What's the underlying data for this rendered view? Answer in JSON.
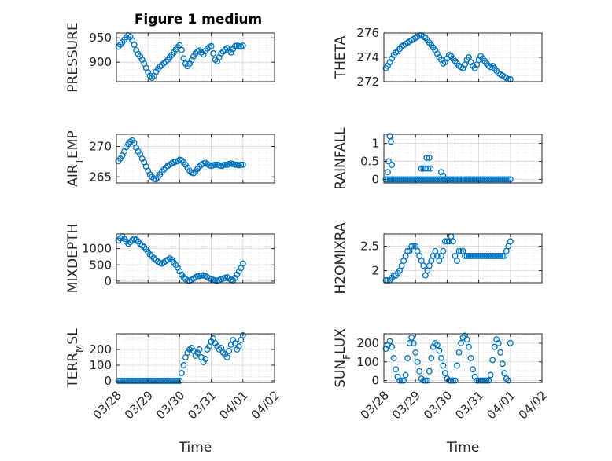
{
  "figure": {
    "title": "Figure 1 medium",
    "colors": {
      "marker": "#0072BD",
      "axis": "#262626",
      "grid": "#d6d6d6",
      "background": "#ffffff"
    }
  },
  "chart_data": [
    {
      "type": "scatter",
      "marker": "circle-open",
      "ylabel": "PRESSURE",
      "xlabel": "",
      "title": "Figure 1 medium",
      "ylim": [
        860,
        960
      ],
      "yticks": [
        "900",
        "950"
      ],
      "yticks_values": [
        900,
        950
      ],
      "xlim": [
        0,
        4
      ],
      "xticks": [],
      "grid": true,
      "x": [
        0.05,
        0.1,
        0.15,
        0.2,
        0.25,
        0.3,
        0.35,
        0.4,
        0.45,
        0.5,
        0.55,
        0.6,
        0.65,
        0.7,
        0.75,
        0.8,
        0.85,
        0.9,
        0.95,
        1.0,
        1.05,
        1.1,
        1.15,
        1.2,
        1.25,
        1.3,
        1.35,
        1.4,
        1.45,
        1.5,
        1.55,
        1.6,
        1.65,
        1.7,
        1.75,
        1.8,
        1.85,
        1.9,
        1.95,
        2.0,
        2.05,
        2.1,
        2.15,
        2.2,
        2.25,
        2.3,
        2.35,
        2.4,
        2.45,
        2.5,
        2.55,
        2.6,
        2.65,
        2.7,
        2.75,
        2.8,
        2.85,
        2.9,
        2.95,
        3.0,
        3.05,
        3.1,
        3.15,
        3.2
      ],
      "y": [
        932,
        936,
        941,
        946,
        951,
        955,
        952,
        945,
        936,
        925,
        917,
        912,
        905,
        897,
        888,
        879,
        872,
        868,
        872,
        880,
        886,
        891,
        894,
        898,
        901,
        905,
        910,
        915,
        920,
        926,
        931,
        935,
        925,
        908,
        897,
        892,
        897,
        904,
        912,
        918,
        922,
        924,
        920,
        916,
        923,
        928,
        931,
        933,
        918,
        905,
        902,
        910,
        918,
        922,
        926,
        929,
        924,
        920,
        927,
        933,
        934,
        933,
        932,
        934
      ]
    },
    {
      "type": "scatter",
      "marker": "circle-open",
      "ylabel": "THETA",
      "xlabel": "",
      "ylim": [
        272,
        276
      ],
      "yticks": [
        "272",
        "274",
        "276"
      ],
      "yticks_values": [
        272,
        274,
        276
      ],
      "xlim": [
        0,
        4
      ],
      "xticks": [],
      "grid": true,
      "x": [
        0.05,
        0.1,
        0.15,
        0.2,
        0.25,
        0.3,
        0.35,
        0.4,
        0.45,
        0.5,
        0.55,
        0.6,
        0.65,
        0.7,
        0.75,
        0.8,
        0.85,
        0.9,
        0.95,
        1.0,
        1.05,
        1.1,
        1.15,
        1.2,
        1.25,
        1.3,
        1.35,
        1.4,
        1.45,
        1.5,
        1.55,
        1.6,
        1.65,
        1.7,
        1.75,
        1.8,
        1.85,
        1.9,
        1.95,
        2.0,
        2.05,
        2.1,
        2.15,
        2.2,
        2.25,
        2.3,
        2.35,
        2.4,
        2.45,
        2.5,
        2.55,
        2.6,
        2.65,
        2.7,
        2.75,
        2.8,
        2.85,
        2.9,
        2.95,
        3.0,
        3.05,
        3.1,
        3.15,
        3.2
      ],
      "y": [
        273.1,
        273.3,
        273.6,
        273.9,
        274.2,
        274.4,
        274.5,
        274.7,
        274.9,
        275.0,
        275.1,
        275.2,
        275.3,
        275.4,
        275.5,
        275.6,
        275.7,
        275.8,
        275.8,
        275.7,
        275.6,
        275.4,
        275.2,
        275.0,
        274.8,
        274.6,
        274.3,
        274.0,
        273.8,
        273.5,
        273.6,
        273.9,
        274.2,
        274.1,
        273.9,
        273.7,
        273.5,
        273.3,
        273.2,
        273.1,
        273.4,
        273.8,
        274.0,
        273.6,
        273.3,
        273.1,
        273.4,
        273.8,
        274.1,
        273.9,
        273.7,
        273.5,
        273.3,
        273.2,
        273.3,
        273.1,
        272.9,
        272.7,
        272.6,
        272.5,
        272.4,
        272.3,
        272.2,
        272.2
      ]
    },
    {
      "type": "scatter",
      "marker": "circle-open",
      "ylabel": "AIR_TEMP",
      "xlabel": "",
      "ylim": [
        264,
        272
      ],
      "yticks": [
        "265",
        "270"
      ],
      "yticks_values": [
        265,
        270
      ],
      "xlim": [
        0,
        4
      ],
      "xticks": [],
      "grid": true,
      "x": [
        0.05,
        0.1,
        0.15,
        0.2,
        0.25,
        0.3,
        0.35,
        0.4,
        0.45,
        0.5,
        0.55,
        0.6,
        0.65,
        0.7,
        0.75,
        0.8,
        0.85,
        0.9,
        0.95,
        1.0,
        1.05,
        1.1,
        1.15,
        1.2,
        1.25,
        1.3,
        1.35,
        1.4,
        1.45,
        1.5,
        1.55,
        1.6,
        1.65,
        1.7,
        1.75,
        1.8,
        1.85,
        1.9,
        1.95,
        2.0,
        2.05,
        2.1,
        2.15,
        2.2,
        2.25,
        2.3,
        2.35,
        2.4,
        2.45,
        2.5,
        2.55,
        2.6,
        2.65,
        2.7,
        2.75,
        2.8,
        2.85,
        2.9,
        2.95,
        3.0,
        3.05,
        3.1,
        3.15,
        3.2
      ],
      "y": [
        267.6,
        268.0,
        268.5,
        269.2,
        269.9,
        270.4,
        270.8,
        271.0,
        270.6,
        269.8,
        269.2,
        268.7,
        268.0,
        267.4,
        266.7,
        266.0,
        265.4,
        265.0,
        264.7,
        264.6,
        264.9,
        265.4,
        265.8,
        266.2,
        266.5,
        266.8,
        267.0,
        267.2,
        267.4,
        267.5,
        267.6,
        267.8,
        267.7,
        267.4,
        267.0,
        266.5,
        266.0,
        265.7,
        265.6,
        265.9,
        266.3,
        266.7,
        267.0,
        267.2,
        267.3,
        267.1,
        266.9,
        266.8,
        266.9,
        267.0,
        267.0,
        266.9,
        266.8,
        266.9,
        267.0,
        267.0,
        267.1,
        267.2,
        267.1,
        267.0,
        267.0,
        266.9,
        267.0,
        267.0
      ]
    },
    {
      "type": "scatter",
      "marker": "circle-open",
      "ylabel": "RAINFALL",
      "xlabel": "",
      "ylim": [
        -0.1,
        1.25
      ],
      "yticks": [
        "0",
        "0.5",
        "1"
      ],
      "yticks_values": [
        0,
        0.5,
        1
      ],
      "xlim": [
        0,
        4
      ],
      "xticks": [],
      "grid": true,
      "x": [
        0.05,
        0.1,
        0.15,
        0.2,
        0.25,
        0.3,
        0.35,
        0.4,
        0.45,
        0.5,
        0.55,
        0.6,
        0.65,
        0.7,
        0.75,
        0.8,
        0.85,
        0.9,
        0.95,
        1.0,
        1.05,
        1.1,
        1.15,
        1.2,
        1.25,
        1.3,
        1.35,
        1.4,
        1.45,
        1.5,
        1.55,
        1.6,
        1.65,
        1.7,
        1.75,
        1.8,
        1.85,
        1.9,
        1.95,
        2.0,
        2.05,
        2.1,
        2.15,
        2.2,
        2.25,
        2.3,
        2.35,
        2.4,
        2.45,
        2.5,
        2.55,
        2.6,
        2.65,
        2.7,
        2.75,
        2.8,
        2.85,
        2.9,
        2.95,
        3.0,
        3.05,
        3.1,
        3.15,
        3.2,
        0.1,
        0.12,
        0.15,
        0.18,
        0.2,
        0.95,
        1.0,
        1.05,
        1.08,
        1.12,
        1.15,
        1.18,
        1.45,
        1.5
      ],
      "y": [
        0,
        0,
        0,
        0,
        0,
        0,
        0,
        0,
        0,
        0,
        0,
        0,
        0,
        0,
        0,
        0,
        0,
        0,
        0,
        0,
        0,
        0,
        0,
        0,
        0,
        0,
        0,
        0,
        0,
        0,
        0,
        0,
        0,
        0,
        0,
        0,
        0,
        0,
        0,
        0,
        0,
        0,
        0,
        0,
        0,
        0,
        0,
        0,
        0,
        0,
        0,
        0,
        0,
        0,
        0,
        0,
        0,
        0,
        0,
        0,
        0,
        0,
        0,
        0,
        0.2,
        0.5,
        1.2,
        1.05,
        0.4,
        0.3,
        0.3,
        0.3,
        0.6,
        0.3,
        0.6,
        0.3,
        0.2,
        0.1
      ]
    },
    {
      "type": "scatter",
      "marker": "circle-open",
      "ylabel": "MIXDEPTH",
      "xlabel": "",
      "ylim": [
        -50,
        1450
      ],
      "yticks": [
        "0",
        "500",
        "1000"
      ],
      "yticks_values": [
        0,
        500,
        1000
      ],
      "xlim": [
        0,
        4
      ],
      "xticks": [],
      "grid": true,
      "x": [
        0.05,
        0.1,
        0.15,
        0.2,
        0.25,
        0.3,
        0.35,
        0.4,
        0.45,
        0.5,
        0.55,
        0.6,
        0.65,
        0.7,
        0.75,
        0.8,
        0.85,
        0.9,
        0.95,
        1.0,
        1.05,
        1.1,
        1.15,
        1.2,
        1.25,
        1.3,
        1.35,
        1.4,
        1.45,
        1.5,
        1.55,
        1.6,
        1.65,
        1.7,
        1.75,
        1.8,
        1.85,
        1.9,
        1.95,
        2.0,
        2.05,
        2.1,
        2.15,
        2.2,
        2.25,
        2.3,
        2.35,
        2.4,
        2.45,
        2.5,
        2.55,
        2.6,
        2.65,
        2.7,
        2.75,
        2.8,
        2.85,
        2.9,
        2.95,
        3.0,
        3.05,
        3.1,
        3.15,
        3.2
      ],
      "y": [
        1250,
        1320,
        1380,
        1300,
        1220,
        1150,
        1200,
        1260,
        1300,
        1280,
        1220,
        1150,
        1100,
        1050,
        980,
        900,
        820,
        760,
        700,
        650,
        600,
        560,
        540,
        580,
        620,
        660,
        700,
        660,
        580,
        500,
        420,
        300,
        200,
        120,
        60,
        20,
        10,
        40,
        80,
        120,
        150,
        160,
        170,
        180,
        160,
        120,
        80,
        60,
        40,
        20,
        10,
        30,
        60,
        80,
        100,
        120,
        80,
        40,
        20,
        100,
        200,
        300,
        400,
        540
      ]
    },
    {
      "type": "scatter",
      "marker": "circle-open",
      "ylabel": "H2OMIXRA",
      "xlabel": "",
      "ylim": [
        1.75,
        2.75
      ],
      "yticks": [
        "2",
        "2.5"
      ],
      "yticks_values": [
        2,
        2.5
      ],
      "xlim": [
        0,
        4
      ],
      "xticks": [],
      "grid": true,
      "x": [
        0.05,
        0.1,
        0.15,
        0.2,
        0.25,
        0.3,
        0.35,
        0.4,
        0.45,
        0.5,
        0.55,
        0.6,
        0.65,
        0.7,
        0.75,
        0.8,
        0.85,
        0.9,
        0.95,
        1.0,
        1.05,
        1.1,
        1.15,
        1.2,
        1.25,
        1.3,
        1.35,
        1.4,
        1.45,
        1.5,
        1.55,
        1.6,
        1.65,
        1.7,
        1.75,
        1.8,
        1.85,
        1.9,
        1.95,
        2.0,
        2.05,
        2.1,
        2.15,
        2.2,
        2.25,
        2.3,
        2.35,
        2.4,
        2.45,
        2.5,
        2.55,
        2.6,
        2.65,
        2.7,
        2.75,
        2.8,
        2.85,
        2.9,
        2.95,
        3.0,
        3.05,
        3.1,
        3.15,
        3.2
      ],
      "y": [
        1.8,
        1.8,
        1.8,
        1.85,
        1.9,
        1.9,
        1.95,
        2.0,
        2.1,
        2.2,
        2.3,
        2.4,
        2.4,
        2.5,
        2.5,
        2.5,
        2.4,
        2.3,
        2.2,
        2.1,
        1.9,
        2.0,
        2.1,
        2.2,
        2.3,
        2.4,
        2.3,
        2.2,
        2.3,
        2.4,
        2.6,
        2.6,
        2.6,
        2.7,
        2.6,
        2.3,
        2.2,
        2.4,
        2.4,
        2.4,
        2.3,
        2.3,
        2.3,
        2.3,
        2.3,
        2.3,
        2.3,
        2.3,
        2.3,
        2.3,
        2.3,
        2.3,
        2.3,
        2.3,
        2.3,
        2.3,
        2.3,
        2.3,
        2.3,
        2.3,
        2.3,
        2.4,
        2.5,
        2.6
      ]
    },
    {
      "type": "scatter",
      "marker": "circle-open",
      "ylabel": "TERR_MSL",
      "xlabel": "Time",
      "ylim": [
        -10,
        300
      ],
      "yticks": [
        "0",
        "100",
        "200"
      ],
      "yticks_values": [
        0,
        100,
        200
      ],
      "xlim": [
        0,
        4
      ],
      "xticks": [
        "03/28",
        "03/29",
        "03/30",
        "03/31",
        "04/01",
        "04/02"
      ],
      "xticks_values": [
        0,
        0.8,
        1.6,
        2.4,
        3.2,
        4.0
      ],
      "grid": true,
      "x": [
        0.05,
        0.1,
        0.15,
        0.2,
        0.25,
        0.3,
        0.35,
        0.4,
        0.45,
        0.5,
        0.55,
        0.6,
        0.65,
        0.7,
        0.75,
        0.8,
        0.85,
        0.9,
        0.95,
        1.0,
        1.05,
        1.1,
        1.15,
        1.2,
        1.25,
        1.3,
        1.35,
        1.4,
        1.45,
        1.5,
        1.55,
        1.6,
        1.65,
        1.7,
        1.75,
        1.8,
        1.85,
        1.9,
        1.95,
        2.0,
        2.05,
        2.1,
        2.15,
        2.2,
        2.25,
        2.3,
        2.35,
        2.4,
        2.45,
        2.5,
        2.55,
        2.6,
        2.65,
        2.7,
        2.75,
        2.8,
        2.85,
        2.9,
        2.95,
        3.0,
        3.05,
        3.1,
        3.15,
        3.2
      ],
      "y": [
        0,
        0,
        0,
        0,
        0,
        0,
        0,
        0,
        0,
        0,
        0,
        0,
        0,
        0,
        0,
        0,
        0,
        0,
        0,
        0,
        0,
        0,
        0,
        0,
        0,
        0,
        0,
        0,
        0,
        0,
        0,
        0,
        50,
        100,
        150,
        180,
        200,
        210,
        190,
        160,
        180,
        200,
        150,
        120,
        140,
        200,
        220,
        250,
        270,
        240,
        220,
        200,
        210,
        180,
        170,
        150,
        190,
        230,
        260,
        240,
        200,
        220,
        260,
        290
      ]
    },
    {
      "type": "scatter",
      "marker": "circle-open",
      "ylabel": "SUN_FLUX",
      "xlabel": "Time",
      "ylim": [
        -10,
        250
      ],
      "yticks": [
        "0",
        "100",
        "200"
      ],
      "yticks_values": [
        0,
        100,
        200
      ],
      "xlim": [
        0,
        4
      ],
      "xticks": [
        "03/28",
        "03/29",
        "03/30",
        "03/31",
        "04/01",
        "04/02"
      ],
      "xticks_values": [
        0,
        0.8,
        1.6,
        2.4,
        3.2,
        4.0
      ],
      "grid": true,
      "x": [
        0.05,
        0.1,
        0.15,
        0.2,
        0.25,
        0.3,
        0.35,
        0.4,
        0.45,
        0.5,
        0.55,
        0.6,
        0.65,
        0.7,
        0.75,
        0.8,
        0.85,
        0.9,
        0.95,
        1.0,
        1.05,
        1.1,
        1.15,
        1.2,
        1.25,
        1.3,
        1.35,
        1.4,
        1.45,
        1.5,
        1.55,
        1.6,
        1.65,
        1.7,
        1.75,
        1.8,
        1.85,
        1.9,
        1.95,
        2.0,
        2.05,
        2.1,
        2.15,
        2.2,
        2.25,
        2.3,
        2.35,
        2.4,
        2.45,
        2.5,
        2.55,
        2.6,
        2.65,
        2.7,
        2.75,
        2.8,
        2.85,
        2.9,
        2.95,
        3.0,
        3.05,
        3.1,
        3.15,
        3.2
      ],
      "y": [
        170,
        190,
        210,
        180,
        120,
        60,
        20,
        0,
        0,
        0,
        30,
        120,
        200,
        230,
        200,
        150,
        100,
        50,
        10,
        0,
        0,
        0,
        50,
        120,
        180,
        200,
        190,
        160,
        120,
        80,
        40,
        10,
        0,
        0,
        0,
        0,
        80,
        150,
        200,
        230,
        240,
        220,
        180,
        120,
        60,
        20,
        0,
        0,
        0,
        0,
        0,
        0,
        0,
        30,
        110,
        180,
        220,
        200,
        150,
        90,
        40,
        10,
        0,
        200
      ]
    }
  ]
}
